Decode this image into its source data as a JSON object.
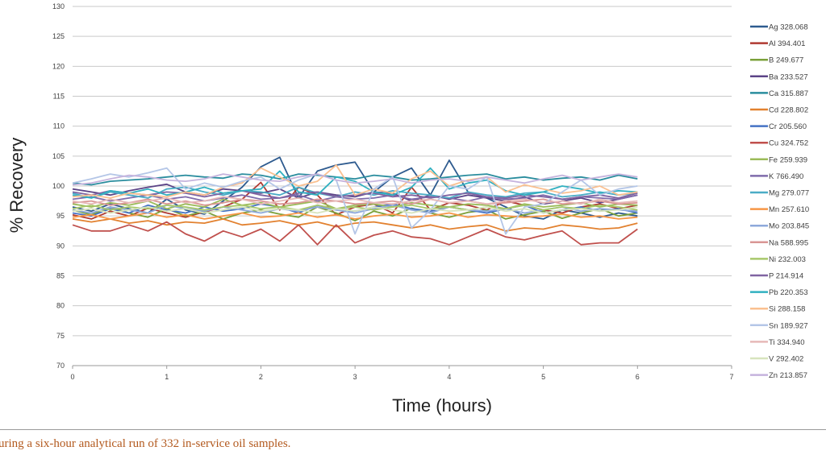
{
  "chart_data": {
    "type": "line",
    "xlabel": "Time (hours)",
    "ylabel": "% Recovery",
    "xlim": [
      0,
      7
    ],
    "ylim": [
      70,
      130
    ],
    "xticks": [
      0,
      1,
      2,
      3,
      4,
      5,
      6,
      7
    ],
    "yticks": [
      70,
      75,
      80,
      85,
      90,
      95,
      100,
      105,
      110,
      115,
      120,
      125,
      130
    ],
    "grid": "horizontal",
    "legend_position": "right",
    "x": [
      0,
      0.2,
      0.4,
      0.6,
      0.8,
      1.0,
      1.2,
      1.4,
      1.6,
      1.8,
      2.0,
      2.2,
      2.4,
      2.6,
      2.8,
      3.0,
      3.2,
      3.4,
      3.6,
      3.8,
      4.0,
      4.2,
      4.4,
      4.6,
      4.8,
      5.0,
      5.2,
      5.4,
      5.6,
      5.8,
      6.0
    ],
    "series": [
      {
        "name": "Ag 328.068",
        "color": "#2e5b8f",
        "values": [
          96.5,
          95.8,
          97.0,
          96.2,
          95.5,
          97.8,
          96.0,
          95.3,
          97.5,
          99.8,
          103.2,
          104.8,
          98.0,
          102.5,
          103.5,
          104.0,
          99.0,
          101.5,
          103.0,
          98.5,
          104.3,
          99.0,
          98.0,
          96.5,
          95.0,
          94.5,
          96.0,
          95.5,
          94.8,
          95.5,
          95.0
        ]
      },
      {
        "name": "Al 394.401",
        "color": "#b03a32",
        "values": [
          95.2,
          94.5,
          95.8,
          95.0,
          96.3,
          95.5,
          94.8,
          95.7,
          96.5,
          97.8,
          100.6,
          96.0,
          99.8,
          98.5,
          95.2,
          96.5,
          97.0,
          95.5,
          99.8,
          96.0,
          97.2,
          96.8,
          96.0,
          97.5,
          96.8,
          96.0,
          95.5,
          96.5,
          97.0,
          96.2,
          96.8
        ]
      },
      {
        "name": "B 249.677",
        "color": "#7ba03a",
        "values": [
          96.0,
          95.2,
          96.5,
          95.5,
          94.8,
          96.2,
          95.0,
          95.8,
          94.5,
          95.5,
          96.0,
          95.3,
          94.8,
          96.5,
          95.5,
          94.2,
          95.8,
          95.0,
          96.3,
          95.5,
          94.8,
          95.6,
          96.0,
          94.5,
          95.2,
          95.8,
          94.6,
          95.5,
          96.2,
          95.0,
          95.5
        ]
      },
      {
        "name": "Ba 233.527",
        "color": "#5c4487",
        "values": [
          99.5,
          99.0,
          98.5,
          99.2,
          99.8,
          100.3,
          99.0,
          98.5,
          99.5,
          99.2,
          98.8,
          99.5,
          98.0,
          99.0,
          98.5,
          98.2,
          99.0,
          98.8,
          97.5,
          98.5,
          97.8,
          98.5,
          98.0,
          97.5,
          98.2,
          97.0,
          97.5,
          98.0,
          97.2,
          97.8,
          98.5
        ]
      },
      {
        "name": "Ca 315.887",
        "color": "#2a8d9e",
        "values": [
          100.5,
          100.2,
          100.8,
          101.0,
          101.2,
          101.5,
          101.8,
          101.5,
          101.3,
          102.0,
          101.8,
          101.2,
          102.0,
          101.8,
          101.5,
          101.2,
          101.8,
          101.5,
          101.0,
          101.2,
          101.5,
          101.8,
          102.0,
          101.2,
          101.5,
          101.0,
          101.3,
          101.5,
          101.0,
          101.8,
          101.2
        ]
      },
      {
        "name": "Cd 228.802",
        "color": "#e2812f",
        "values": [
          94.5,
          94.0,
          94.5,
          93.8,
          94.2,
          93.5,
          94.0,
          93.8,
          94.5,
          93.5,
          93.8,
          94.2,
          93.5,
          94.0,
          93.2,
          93.8,
          94.0,
          93.5,
          93.0,
          93.5,
          92.8,
          93.2,
          93.5,
          92.5,
          93.0,
          92.8,
          93.5,
          93.2,
          92.8,
          93.0,
          93.8
        ]
      },
      {
        "name": "Cr 205.560",
        "color": "#4472c4",
        "values": [
          95.5,
          95.0,
          96.2,
          95.5,
          96.8,
          96.0,
          95.5,
          96.5,
          95.8,
          96.2,
          97.0,
          96.5,
          95.5,
          96.8,
          96.0,
          95.8,
          96.5,
          97.0,
          96.2,
          95.8,
          96.5,
          96.0,
          95.5,
          96.2,
          96.8,
          95.5,
          96.0,
          96.5,
          95.8,
          96.2,
          95.5
        ]
      },
      {
        "name": "Cu 324.752",
        "color": "#c0504d",
        "values": [
          93.5,
          92.5,
          92.5,
          93.5,
          92.5,
          94.0,
          92.0,
          90.8,
          92.5,
          91.5,
          92.8,
          90.8,
          93.5,
          90.2,
          93.5,
          90.5,
          91.8,
          92.5,
          91.5,
          91.2,
          90.2,
          91.5,
          92.8,
          91.5,
          91.0,
          91.8,
          92.5,
          90.2,
          90.5,
          90.5,
          92.8
        ]
      },
      {
        "name": "Fe 259.939",
        "color": "#9bbb59",
        "values": [
          97.0,
          96.5,
          97.2,
          96.8,
          97.5,
          96.2,
          97.0,
          96.5,
          97.8,
          96.8,
          97.2,
          96.5,
          97.0,
          97.5,
          96.2,
          96.8,
          97.0,
          96.5,
          97.2,
          96.8,
          96.5,
          97.0,
          96.8,
          96.2,
          97.0,
          96.5,
          96.8,
          97.2,
          96.5,
          97.0,
          96.8
        ]
      },
      {
        "name": "K 766.490",
        "color": "#7f6bab",
        "values": [
          97.8,
          98.2,
          97.5,
          98.0,
          98.5,
          97.8,
          98.2,
          97.5,
          98.0,
          98.5,
          97.8,
          98.0,
          98.5,
          97.5,
          98.2,
          97.8,
          98.0,
          98.5,
          97.8,
          98.2,
          98.0,
          97.5,
          98.2,
          97.8,
          98.0,
          98.5,
          97.8,
          98.2,
          98.0,
          97.8,
          98.5
        ]
      },
      {
        "name": "Mg 279.077",
        "color": "#4bacc6",
        "values": [
          98.8,
          98.0,
          99.0,
          98.5,
          98.0,
          99.5,
          99.8,
          99.0,
          98.5,
          99.2,
          99.0,
          98.5,
          99.8,
          98.8,
          98.2,
          99.0,
          98.5,
          99.2,
          98.8,
          98.5,
          98.0,
          99.0,
          98.5,
          98.2,
          98.8,
          99.0,
          98.2,
          98.5,
          99.0,
          98.5,
          98.8
        ]
      },
      {
        "name": "Mn 257.610",
        "color": "#f79646",
        "values": [
          94.8,
          95.2,
          94.5,
          95.0,
          95.5,
          94.8,
          95.2,
          94.5,
          95.0,
          95.5,
          94.8,
          95.0,
          95.5,
          94.8,
          95.2,
          94.5,
          95.0,
          95.3,
          94.8,
          95.0,
          95.5,
          94.8,
          95.2,
          95.0,
          94.8,
          95.0,
          95.3,
          94.8,
          95.0,
          94.5,
          94.8
        ]
      },
      {
        "name": "Mo 203.845",
        "color": "#8ea9db",
        "values": [
          96.0,
          95.5,
          96.5,
          96.0,
          95.5,
          96.8,
          96.2,
          95.8,
          96.5,
          96.0,
          95.5,
          96.2,
          95.8,
          96.5,
          96.0,
          95.5,
          96.2,
          96.8,
          96.0,
          95.5,
          96.5,
          96.0,
          95.8,
          96.2,
          95.5,
          96.0,
          96.5,
          95.8,
          96.2,
          96.0,
          95.8
        ]
      },
      {
        "name": "Na 588.995",
        "color": "#d99694",
        "values": [
          97.2,
          97.5,
          96.8,
          97.2,
          97.8,
          97.0,
          97.5,
          96.8,
          97.2,
          97.8,
          97.5,
          97.0,
          97.2,
          97.8,
          97.5,
          97.0,
          97.2,
          97.5,
          97.0,
          97.8,
          97.2,
          97.5,
          97.0,
          97.2,
          97.5,
          97.8,
          97.0,
          97.2,
          97.5,
          97.0,
          97.2
        ]
      },
      {
        "name": "Ni 232.003",
        "color": "#a8c86b",
        "values": [
          96.2,
          96.8,
          96.0,
          96.5,
          96.2,
          96.8,
          96.5,
          96.0,
          96.5,
          96.8,
          96.2,
          96.5,
          96.0,
          96.8,
          96.2,
          96.5,
          96.0,
          96.5,
          96.8,
          96.2,
          96.5,
          96.0,
          96.5,
          96.2,
          96.8,
          96.0,
          96.5,
          96.2,
          96.8,
          96.5,
          96.0
        ]
      },
      {
        "name": "P 214.914",
        "color": "#8064a2",
        "values": [
          99.0,
          98.5,
          99.2,
          98.8,
          98.5,
          99.0,
          98.8,
          98.2,
          98.8,
          99.2,
          98.5,
          98.0,
          98.8,
          99.0,
          98.2,
          98.5,
          98.8,
          98.2,
          98.5,
          98.0,
          98.5,
          98.8,
          98.2,
          98.0,
          98.5,
          98.2,
          97.8,
          98.2,
          98.5,
          98.0,
          98.8
        ]
      },
      {
        "name": "Pb 220.353",
        "color": "#31b0c0",
        "values": [
          98.5,
          98.0,
          99.2,
          98.8,
          99.5,
          98.5,
          99.0,
          99.8,
          98.8,
          99.2,
          99.5,
          102.5,
          99.0,
          98.5,
          101.5,
          100.8,
          99.0,
          98.5,
          99.8,
          103.0,
          99.5,
          100.5,
          101.0,
          99.2,
          98.5,
          99.0,
          100.0,
          99.5,
          98.8,
          99.2,
          99.0
        ]
      },
      {
        "name": "Si 288.158",
        "color": "#fac090",
        "values": [
          98.2,
          98.5,
          98.0,
          98.8,
          98.5,
          98.2,
          99.0,
          98.5,
          99.8,
          100.5,
          103.0,
          101.5,
          100.0,
          100.8,
          103.5,
          98.5,
          99.5,
          98.8,
          101.2,
          102.5,
          100.0,
          101.0,
          101.5,
          99.0,
          100.2,
          99.5,
          98.8,
          99.2,
          100.0,
          98.5,
          99.0
        ]
      },
      {
        "name": "Sn 189.927",
        "color": "#b4c6e7",
        "values": [
          100.5,
          101.2,
          102.0,
          101.5,
          102.2,
          103.0,
          99.5,
          100.5,
          99.8,
          100.8,
          101.5,
          99.5,
          101.0,
          102.0,
          101.0,
          92.0,
          99.5,
          101.5,
          93.0,
          96.0,
          100.0,
          99.5,
          101.5,
          92.0,
          96.5,
          97.0,
          99.0,
          101.0,
          98.5,
          99.5,
          100.0
        ]
      },
      {
        "name": "Ti 334.940",
        "color": "#e6b9b8",
        "values": [
          97.5,
          97.0,
          97.8,
          97.2,
          97.5,
          98.0,
          97.2,
          97.5,
          98.2,
          97.8,
          97.0,
          97.5,
          98.0,
          97.2,
          97.5,
          97.8,
          97.2,
          97.0,
          97.5,
          97.8,
          97.2,
          97.5,
          97.0,
          97.5,
          97.8,
          97.2,
          97.5,
          97.0,
          97.8,
          97.2,
          97.5
        ]
      },
      {
        "name": "V 292.402",
        "color": "#d7e4bd",
        "values": [
          95.8,
          96.2,
          95.5,
          96.0,
          96.5,
          95.8,
          96.2,
          95.5,
          96.0,
          96.5,
          95.8,
          96.2,
          96.0,
          95.5,
          96.2,
          95.8,
          96.5,
          96.0,
          95.5,
          96.2,
          95.8,
          96.0,
          96.5,
          95.8,
          96.2,
          95.5,
          96.0,
          96.2,
          95.8,
          96.0,
          96.5
        ]
      },
      {
        "name": "Zn 213.857",
        "color": "#c5b3dd",
        "values": [
          100.2,
          100.5,
          101.2,
          101.8,
          101.5,
          101.0,
          100.8,
          101.2,
          102.0,
          101.5,
          101.0,
          100.8,
          101.5,
          102.0,
          101.0,
          100.5,
          100.8,
          101.2,
          100.5,
          101.0,
          101.2,
          100.8,
          101.5,
          101.0,
          100.5,
          101.2,
          101.8,
          101.0,
          101.5,
          102.0,
          101.5
        ]
      }
    ]
  },
  "caption": "uring a six-hour analytical run of 332 in-service oil samples."
}
